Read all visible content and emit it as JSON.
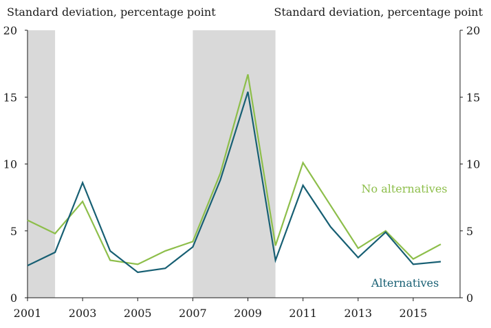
{
  "chart_data": {
    "type": "line",
    "left_axis_title": "Standard deviation, percentage point",
    "right_axis_title": "Standard deviation, percentage point",
    "x": [
      2001,
      2002,
      2003,
      2004,
      2005,
      2006,
      2007,
      2008,
      2009,
      2010,
      2011,
      2012,
      2013,
      2014,
      2015,
      2016
    ],
    "x_tick_labels": [
      "2001",
      "2003",
      "2005",
      "2007",
      "2009",
      "2011",
      "2013",
      "2015"
    ],
    "xlim": [
      2001,
      2016.7
    ],
    "ylim": [
      0,
      20
    ],
    "y_ticks": [
      "0",
      "5",
      "10",
      "15",
      "20"
    ],
    "shaded_periods": [
      [
        2001,
        2002
      ],
      [
        2007,
        2010
      ]
    ],
    "grid": false,
    "series": [
      {
        "name": "No alternatives",
        "color": "#8dbe4a",
        "values": [
          5.8,
          4.8,
          7.2,
          2.8,
          2.5,
          3.5,
          4.2,
          9.3,
          16.7,
          3.9,
          10.1,
          6.9,
          3.7,
          5.0,
          2.9,
          4.0
        ]
      },
      {
        "name": "Alternatives",
        "color": "#175f73",
        "values": [
          2.4,
          3.4,
          8.6,
          3.5,
          1.9,
          2.2,
          3.8,
          8.8,
          15.4,
          2.8,
          8.4,
          5.3,
          3.0,
          4.9,
          2.5,
          2.7
        ]
      }
    ]
  }
}
